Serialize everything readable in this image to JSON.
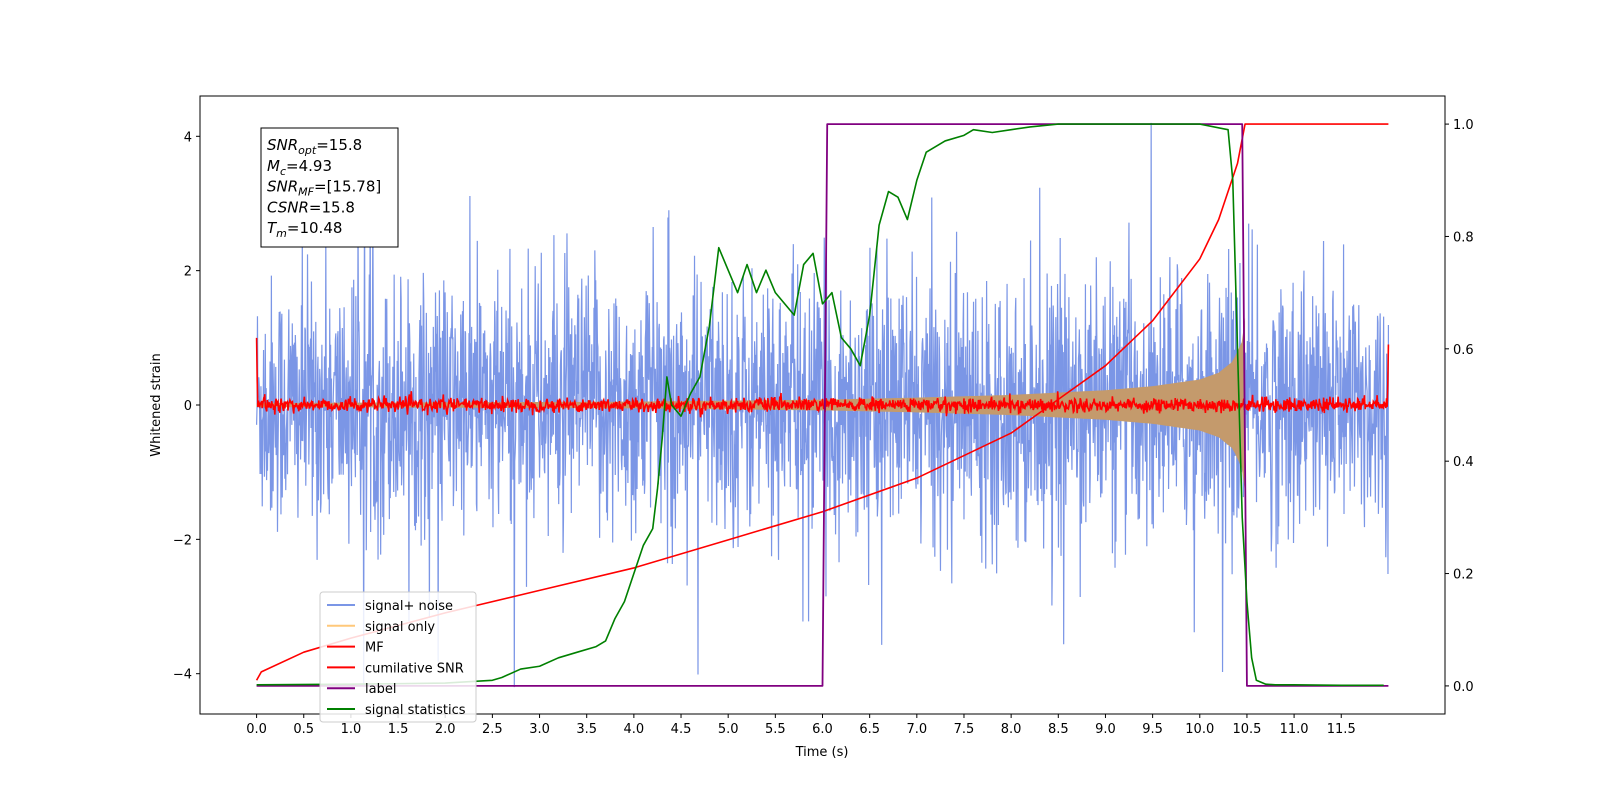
{
  "chart_data": {
    "type": "line",
    "xlabel": "Time (s)",
    "ylabel": "Whitened strain",
    "xlim": [
      -0.6,
      12.6
    ],
    "ylim": [
      -4.6,
      4.6
    ],
    "y2lim": [
      -0.05,
      1.05
    ],
    "xticks": [
      "0.0",
      "0.5",
      "1.0",
      "1.5",
      "2.0",
      "2.5",
      "3.0",
      "3.5",
      "4.0",
      "4.5",
      "5.0",
      "5.5",
      "6.0",
      "6.5",
      "7.0",
      "7.5",
      "8.0",
      "8.5",
      "9.0",
      "9.5",
      "10.0",
      "10.5",
      "11.0",
      "11.5"
    ],
    "yticks": [
      -4,
      -2,
      0,
      2,
      4
    ],
    "y2ticks": [
      "0.0",
      "0.2",
      "0.4",
      "0.6",
      "0.8",
      "1.0"
    ],
    "annotation": {
      "lines": [
        {
          "sym": "SNR",
          "sub": "opt",
          "val": "=15.8"
        },
        {
          "sym": "M",
          "sub": "c",
          "val": "=4.93"
        },
        {
          "sym": "SNR",
          "sub": "MF",
          "val": "=[15.78]"
        },
        {
          "sym": "CSNR",
          "sub": "",
          "val": "=15.8"
        },
        {
          "sym": "T",
          "sub": "m",
          "val": "=10.48"
        }
      ]
    },
    "legend": {
      "placement": "lower-left",
      "entries": [
        {
          "label": "signal+ noise",
          "color": "#7b96e6"
        },
        {
          "label": "signal only",
          "color": "#ffc87a"
        },
        {
          "label": "MF",
          "color": "#ff0000"
        },
        {
          "label": "cumilative SNR",
          "color": "#ff0000"
        },
        {
          "label": "label",
          "color": "#800080"
        },
        {
          "label": "signal statistics",
          "color": "#008000"
        }
      ]
    },
    "series": [
      {
        "name": "signal+ noise",
        "axis": "left",
        "color": "#7b96e6",
        "x_range": [
          0.0,
          12.0
        ],
        "envelope_typical": 1.6,
        "envelope_peak": 4.2
      },
      {
        "name": "signal only",
        "axis": "left",
        "color": "#c49a6c",
        "x": [
          0.0,
          4.0,
          6.0,
          7.0,
          8.0,
          9.0,
          9.5,
          10.0,
          10.2,
          10.35,
          10.45,
          10.48
        ],
        "amplitude": [
          0.03,
          0.05,
          0.08,
          0.11,
          0.15,
          0.22,
          0.28,
          0.38,
          0.48,
          0.65,
          0.95,
          1.3
        ]
      },
      {
        "name": "MF",
        "axis": "left",
        "color": "#ff0000",
        "x_range": [
          0.0,
          12.0
        ],
        "center": 0.0,
        "noise_amplitude": 0.12,
        "edge_peak_left": 1.0,
        "edge_peak_right": 0.9
      },
      {
        "name": "cumilative SNR",
        "axis": "right",
        "color": "#ff0000",
        "x": [
          0.0,
          0.05,
          0.5,
          1.0,
          2.0,
          3.0,
          4.0,
          5.0,
          6.0,
          7.0,
          8.0,
          8.5,
          9.0,
          9.5,
          10.0,
          10.2,
          10.4,
          10.48,
          12.0
        ],
        "y": [
          0.01,
          0.025,
          0.06,
          0.085,
          0.13,
          0.17,
          0.21,
          0.26,
          0.31,
          0.37,
          0.45,
          0.51,
          0.57,
          0.65,
          0.76,
          0.83,
          0.93,
          1.0,
          1.0
        ]
      },
      {
        "name": "label",
        "axis": "right",
        "color": "#800080",
        "x": [
          0.0,
          6.0,
          6.05,
          10.45,
          10.5,
          12.0
        ],
        "y": [
          0.0,
          0.0,
          1.0,
          1.0,
          0.0,
          0.0
        ]
      },
      {
        "name": "signal statistics",
        "axis": "right",
        "color": "#008000",
        "x": [
          0.0,
          1.0,
          2.0,
          2.5,
          2.6,
          2.8,
          3.0,
          3.2,
          3.4,
          3.6,
          3.7,
          3.8,
          3.9,
          4.0,
          4.1,
          4.2,
          4.25,
          4.3,
          4.35,
          4.4,
          4.5,
          4.6,
          4.7,
          4.8,
          4.9,
          5.0,
          5.1,
          5.2,
          5.3,
          5.4,
          5.5,
          5.6,
          5.7,
          5.8,
          5.9,
          6.0,
          6.1,
          6.2,
          6.3,
          6.4,
          6.5,
          6.6,
          6.7,
          6.8,
          6.9,
          7.0,
          7.1,
          7.2,
          7.3,
          7.5,
          7.6,
          7.8,
          8.0,
          8.2,
          8.5,
          9.0,
          9.5,
          10.0,
          10.3,
          10.35,
          10.4,
          10.45,
          10.5,
          10.55,
          10.6,
          10.7,
          10.8,
          11.0,
          11.5,
          11.95
        ],
        "y": [
          0.002,
          0.003,
          0.005,
          0.01,
          0.015,
          0.03,
          0.035,
          0.05,
          0.06,
          0.07,
          0.08,
          0.12,
          0.15,
          0.2,
          0.25,
          0.28,
          0.35,
          0.44,
          0.55,
          0.5,
          0.48,
          0.52,
          0.55,
          0.64,
          0.78,
          0.74,
          0.7,
          0.75,
          0.7,
          0.74,
          0.7,
          0.68,
          0.66,
          0.75,
          0.77,
          0.68,
          0.7,
          0.62,
          0.6,
          0.57,
          0.66,
          0.82,
          0.88,
          0.87,
          0.83,
          0.9,
          0.95,
          0.96,
          0.97,
          0.98,
          0.99,
          0.985,
          0.99,
          0.995,
          1.0,
          1.0,
          1.0,
          1.0,
          0.99,
          0.9,
          0.6,
          0.3,
          0.15,
          0.05,
          0.01,
          0.003,
          0.002,
          0.002,
          0.001,
          0.001
        ]
      }
    ]
  }
}
